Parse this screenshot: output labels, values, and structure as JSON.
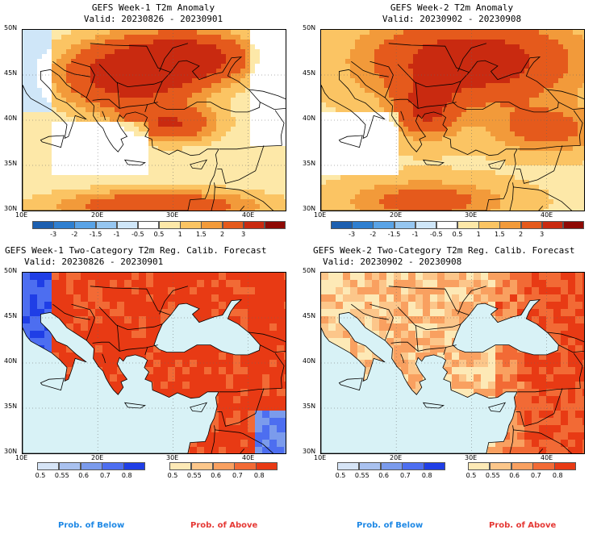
{
  "panels": [
    {
      "title": "GEFS Week-1 T2m Anomaly",
      "valid": "Valid: 20230826 - 20230901",
      "kind": "anomaly"
    },
    {
      "title": "GEFS Week-2 T2m Anomaly",
      "valid": "Valid: 20230902 - 20230908",
      "kind": "anomaly"
    },
    {
      "title": "GEFS Week-1 Two-Category T2m Reg. Calib. Forecast",
      "valid": "Valid: 20230826 - 20230901",
      "kind": "prob"
    },
    {
      "title": "GEFS Week-2 Two-Category T2m Reg. Calib. Forecast",
      "valid": "Valid: 20230902 - 20230908",
      "kind": "prob"
    }
  ],
  "axes": {
    "lat_labels": [
      "50N",
      "45N",
      "40N",
      "35N",
      "30N"
    ],
    "lon_labels": [
      "10E",
      "20E",
      "30E",
      "40E"
    ]
  },
  "anomaly_colorbar": {
    "labels": [
      "-3",
      "-2",
      "-1.5",
      "-1",
      "-0.5",
      "0.5",
      "1",
      "1.5",
      "2",
      "3"
    ],
    "colors": [
      "#1c5fb0",
      "#2f7fd0",
      "#5aa3e6",
      "#96c6f0",
      "#cfe6f8",
      "#ffffff",
      "#fde8a8",
      "#fbc463",
      "#f29a3a",
      "#e55a1c",
      "#c92a10",
      "#8e0a05"
    ]
  },
  "prob_colorbar_below": {
    "labels": [
      "0.5",
      "0.55",
      "0.6",
      "0.7",
      "0.8"
    ],
    "colors": [
      "#d6e4f6",
      "#a9c1ef",
      "#7b9bec",
      "#4d6ef0",
      "#1f3ee6"
    ]
  },
  "prob_colorbar_above": {
    "labels": [
      "0.5",
      "0.55",
      "0.6",
      "0.7",
      "0.8"
    ],
    "colors": [
      "#fde9b6",
      "#fcc68a",
      "#f9a060",
      "#f26a35",
      "#e83a14"
    ]
  },
  "legend": {
    "below": "Prob. of Below",
    "above": "Prob. of Above"
  },
  "colors": {
    "sea": "#d8f2f6",
    "below_text": "#1e88e5",
    "above_text": "#e53935"
  }
}
